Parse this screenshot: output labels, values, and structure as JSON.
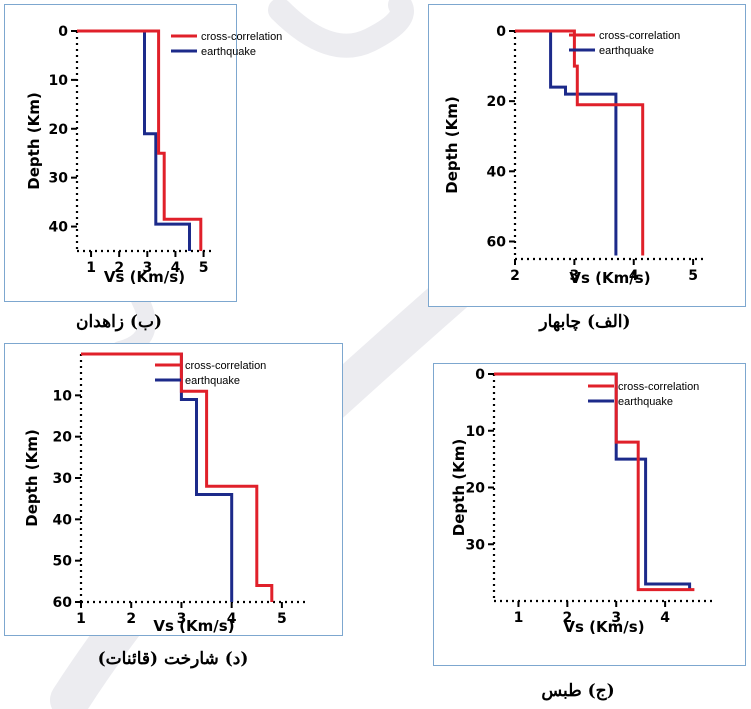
{
  "colors": {
    "cross_correlation": "#e0202a",
    "earthquake": "#1c2a8a",
    "frame": "#7da7cf",
    "watermark": "#ececf0"
  },
  "legend": {
    "cross_correlation": "cross-correlation",
    "earthquake": "earthquake"
  },
  "xlabel": "Vs (Km/s)",
  "ylabel": "Depth (Km)",
  "captions": {
    "zahedan": "(ب) زاهدان",
    "chabahar": "(الف) چابهار",
    "shahrokht": "(د) شارخت (قائنات)",
    "tabas": "(ج) طبس"
  },
  "chart_data": [
    {
      "id": "zahedan",
      "type": "line",
      "legend_position": "top-right",
      "xlabel": "Vs (Km/s)",
      "ylabel": "Depth (Km)",
      "xlim": [
        0.5,
        5.3
      ],
      "ylim": [
        45,
        0
      ],
      "xticks": [
        1,
        2,
        3,
        4,
        5
      ],
      "yticks": [
        0,
        10,
        20,
        30,
        40
      ],
      "series": [
        {
          "name": "cross-correlation",
          "x": [
            0.5,
            3.4,
            3.4,
            3.6,
            3.6,
            3.7,
            3.7,
            4.9,
            4.9
          ],
          "y": [
            0,
            0,
            25,
            25,
            38.5,
            38.5,
            38.5,
            38.5,
            45
          ]
        },
        {
          "name": "earthquake",
          "x": [
            0.5,
            2.9,
            2.9,
            3.3,
            3.3,
            4.5,
            4.5
          ],
          "y": [
            0,
            0,
            21,
            21,
            39.5,
            39.5,
            45
          ]
        }
      ]
    },
    {
      "id": "chabahar",
      "type": "line",
      "legend_position": "top-right",
      "xlabel": "Vs (Km/s)",
      "ylabel": "Depth (Km)",
      "xlim": [
        2,
        5.2
      ],
      "ylim": [
        65,
        0
      ],
      "xticks": [
        2,
        3,
        4,
        5
      ],
      "yticks": [
        0,
        20,
        40,
        60
      ],
      "series": [
        {
          "name": "cross-correlation",
          "x": [
            2,
            3.0,
            3.0,
            3.05,
            3.05,
            4.15,
            4.15
          ],
          "y": [
            0,
            0,
            10,
            10,
            21,
            21,
            64
          ]
        },
        {
          "name": "earthquake",
          "x": [
            2,
            2.6,
            2.6,
            2.85,
            2.85,
            3.3,
            3.3,
            3.7,
            3.7
          ],
          "y": [
            0,
            0,
            16,
            16,
            18,
            18,
            18,
            18,
            64
          ]
        }
      ]
    },
    {
      "id": "shahrokht",
      "type": "line",
      "legend_position": "top-right",
      "xlabel": "Vs (Km/s)",
      "ylabel": "Depth (Km)",
      "xlim": [
        1,
        5.5
      ],
      "ylim": [
        60,
        0
      ],
      "xticks": [
        1,
        2,
        3,
        4,
        5
      ],
      "yticks": [
        10,
        20,
        30,
        40,
        50,
        60
      ],
      "series": [
        {
          "name": "cross-correlation",
          "x": [
            1,
            3.0,
            3.0,
            3.5,
            3.5,
            4.5,
            4.5,
            4.8,
            4.8
          ],
          "y": [
            0,
            0,
            9,
            9,
            32,
            32,
            56,
            56,
            60
          ]
        },
        {
          "name": "earthquake",
          "x": [
            1,
            3.0,
            3.0,
            3.3,
            3.3,
            4.0,
            4.0
          ],
          "y": [
            0,
            0,
            11,
            11,
            34,
            34,
            60
          ]
        }
      ]
    },
    {
      "id": "tabas",
      "type": "line",
      "legend_position": "top-right",
      "xlabel": "Vs (Km/s)",
      "ylabel": "Depth (Km)",
      "xlim": [
        0.5,
        5.0
      ],
      "ylim": [
        40,
        0
      ],
      "xticks": [
        1,
        2,
        3,
        4
      ],
      "yticks": [
        0,
        10,
        20,
        30
      ],
      "series": [
        {
          "name": "cross-correlation",
          "x": [
            0.5,
            3.0,
            3.0,
            3.45,
            3.45,
            3.55,
            3.55,
            4.6
          ],
          "y": [
            0,
            0,
            12,
            12,
            38,
            38,
            38,
            38
          ]
        },
        {
          "name": "earthquake",
          "x": [
            0.5,
            3.0,
            3.0,
            3.3,
            3.3,
            3.6,
            3.6,
            4.5,
            4.5
          ],
          "y": [
            0,
            0,
            15,
            15,
            15,
            15,
            37,
            37,
            38
          ]
        }
      ]
    }
  ]
}
